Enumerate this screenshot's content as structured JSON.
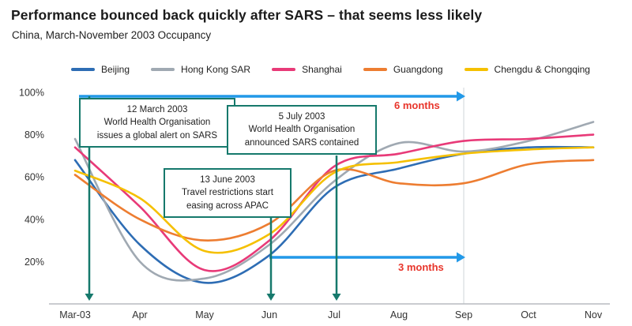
{
  "header": {
    "title": "Performance bounced back quickly after SARS – that seems less likely",
    "subtitle": "China, March-November 2003 Occupancy"
  },
  "chart_data": {
    "type": "line",
    "title": "China, March-November 2003 Occupancy",
    "x": [
      "Mar-03",
      "Apr",
      "May",
      "Jun",
      "Jul",
      "Aug",
      "Sep",
      "Oct",
      "Nov"
    ],
    "ylim": [
      0,
      100
    ],
    "y_ticks": [
      20,
      40,
      60,
      80,
      100
    ],
    "y_tick_suffix": "%",
    "grid": "off",
    "legend_position": "top",
    "series": [
      {
        "name": "Beijing",
        "color": "#2e6db4",
        "values": [
          68,
          28,
          10,
          23,
          55,
          64,
          71,
          74,
          74
        ]
      },
      {
        "name": "Hong Kong SAR",
        "color": "#a0a9b2",
        "values": [
          78,
          20,
          12,
          28,
          58,
          76,
          72,
          77,
          86
        ]
      },
      {
        "name": "Shanghai",
        "color": "#e83a78",
        "values": [
          74,
          46,
          16,
          30,
          65,
          71,
          77,
          78,
          80
        ]
      },
      {
        "name": "Guangdong",
        "color": "#ed7d31",
        "values": [
          61,
          40,
          30,
          38,
          63,
          57,
          57,
          66,
          68
        ]
      },
      {
        "name": "Chengdu & Chongqing",
        "color": "#f5c000",
        "values": [
          63,
          50,
          25,
          33,
          62,
          67,
          71,
          73,
          74
        ]
      }
    ],
    "divider_month": "Sep",
    "event_arrows": [
      {
        "month": "Mar-03",
        "label_ref": "global_alert"
      },
      {
        "month": "Jun",
        "label_ref": "travel_restrictions"
      },
      {
        "month": "Jul",
        "label_ref": "sars_contained"
      }
    ],
    "span_arrows": [
      {
        "from": "Mar-03",
        "to": "Sep",
        "label": "6 months",
        "y_pct": 100
      },
      {
        "from": "Jun",
        "to": "Sep",
        "label": "3 months",
        "y_pct": 22
      }
    ]
  },
  "annotations": {
    "global_alert": [
      "12 March 2003",
      "World Health Organisation",
      "issues a global alert on SARS"
    ],
    "sars_contained": [
      "5 July 2003",
      "World Health Organisation",
      "announced SARS contained"
    ],
    "travel_restrictions": [
      "13 June 2003",
      "Travel restrictions start",
      "easing across APAC"
    ],
    "six_months": "6 months",
    "three_months": "3 months"
  },
  "colors": {
    "callout_border": "#16796c",
    "span_arrow": "#2299e8",
    "duration_text": "#e8352b",
    "axis": "#b8bcc0",
    "divider": "#cfd4d8",
    "tick_text": "#333333"
  }
}
